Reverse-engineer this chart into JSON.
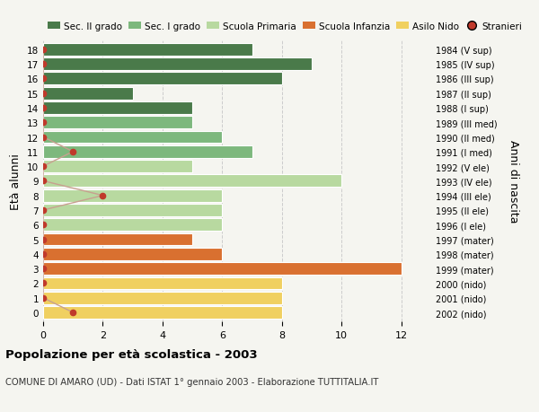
{
  "ages": [
    18,
    17,
    16,
    15,
    14,
    13,
    12,
    11,
    10,
    9,
    8,
    7,
    6,
    5,
    4,
    3,
    2,
    1,
    0
  ],
  "years": [
    "1984 (V sup)",
    "1985 (IV sup)",
    "1986 (III sup)",
    "1987 (II sup)",
    "1988 (I sup)",
    "1989 (III med)",
    "1990 (II med)",
    "1991 (I med)",
    "1992 (V ele)",
    "1993 (IV ele)",
    "1994 (III ele)",
    "1995 (II ele)",
    "1996 (I ele)",
    "1997 (mater)",
    "1998 (mater)",
    "1999 (mater)",
    "2000 (nido)",
    "2001 (nido)",
    "2002 (nido)"
  ],
  "bar_values": [
    7,
    9,
    8,
    3,
    5,
    5,
    6,
    7,
    5,
    10,
    6,
    6,
    6,
    5,
    6,
    12,
    8,
    8,
    8
  ],
  "bar_colors": [
    "#4a7a4a",
    "#4a7a4a",
    "#4a7a4a",
    "#4a7a4a",
    "#4a7a4a",
    "#7db87d",
    "#7db87d",
    "#7db87d",
    "#b8d9a0",
    "#b8d9a0",
    "#b8d9a0",
    "#b8d9a0",
    "#b8d9a0",
    "#d97030",
    "#d97030",
    "#d97030",
    "#f0d060",
    "#f0d060",
    "#f0d060"
  ],
  "all_stranieri_x": [
    0,
    0,
    0,
    0,
    0,
    0,
    0,
    1,
    0,
    0,
    2,
    0,
    0,
    0,
    0,
    0,
    0,
    0,
    1
  ],
  "legend_labels": [
    "Sec. II grado",
    "Sec. I grado",
    "Scuola Primaria",
    "Scuola Infanzia",
    "Asilo Nido",
    "Stranieri"
  ],
  "legend_colors": [
    "#4a7a4a",
    "#7db87d",
    "#b8d9a0",
    "#d97030",
    "#f0d060",
    "#c0392b"
  ],
  "title": "Popolazione per età scolastica - 2003",
  "subtitle": "COMUNE DI AMARO (UD) - Dati ISTAT 1° gennaio 2003 - Elaborazione TUTTITALIA.IT",
  "ylabel_left": "Età alunni",
  "ylabel_right": "Anni di nascita",
  "xlim": [
    0,
    13
  ],
  "xticks": [
    0,
    2,
    4,
    6,
    8,
    10,
    12
  ],
  "bg_color": "#f5f5f0",
  "grid_color": "#cccccc",
  "bar_height": 0.85,
  "stranieri_line_color": "#c8a090",
  "stranieri_dot_color": "#c0392b"
}
